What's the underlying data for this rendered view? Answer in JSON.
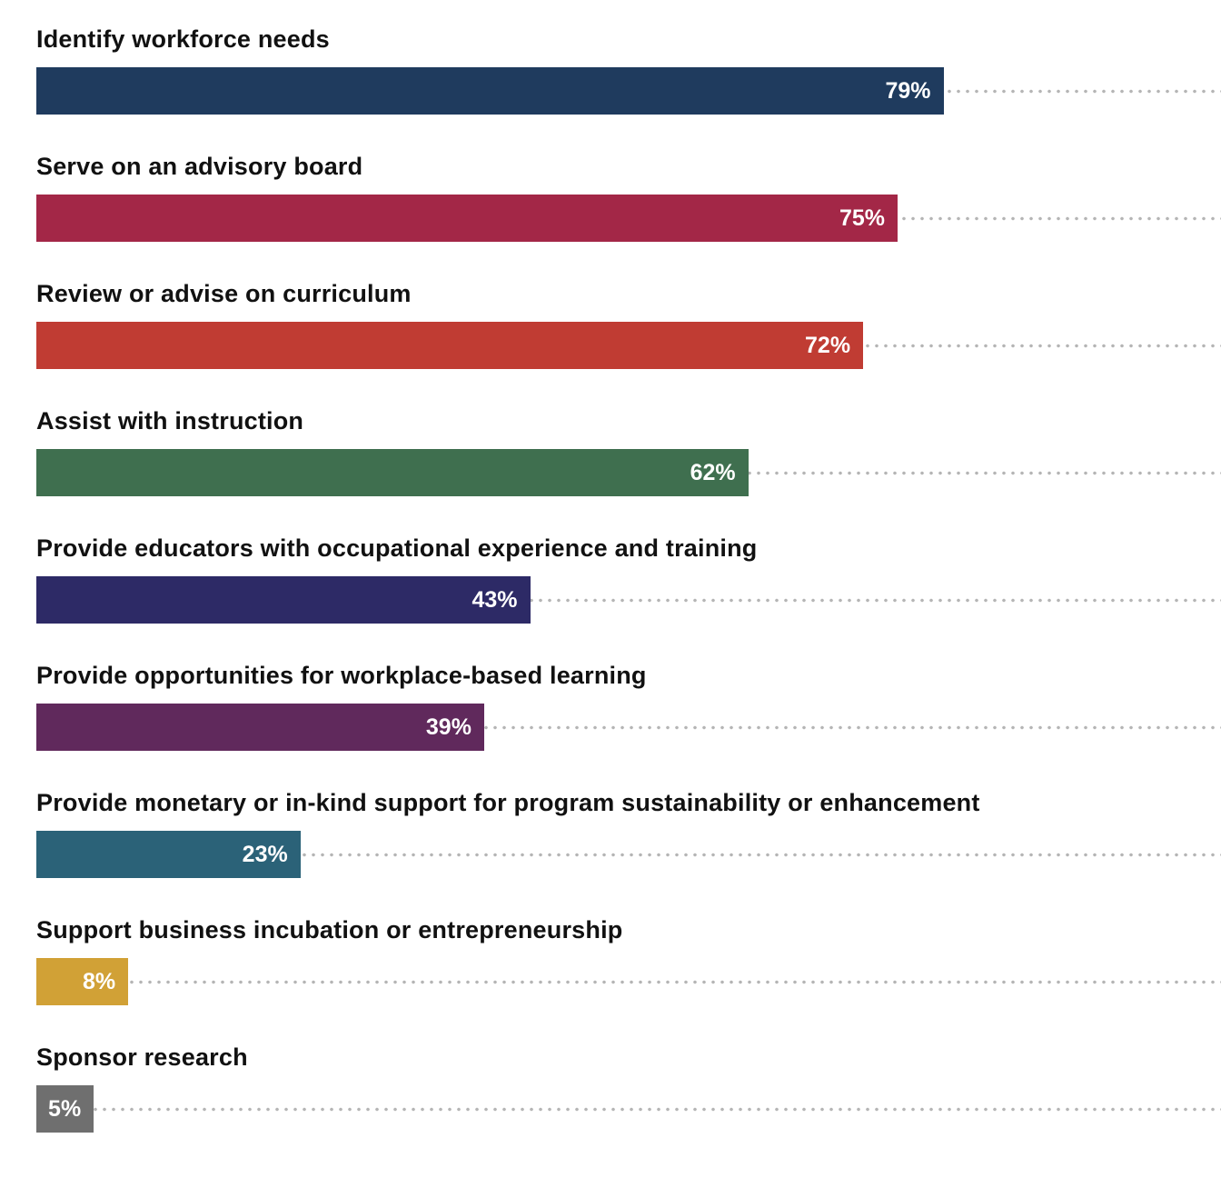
{
  "chart_data": {
    "type": "bar",
    "orientation": "horizontal",
    "title": "",
    "xlabel": "",
    "ylabel": "",
    "xlim": [
      0,
      100
    ],
    "grid": false,
    "legend": "none",
    "value_suffix": "%",
    "leader_dot_color": "#b5b5b5",
    "background_color": "#ffffff",
    "label_color": "#111111",
    "value_label_color": "#ffffff",
    "categories": [
      "Identify workforce needs",
      "Serve on an advisory board",
      "Review or advise on curriculum",
      "Assist with instruction",
      "Provide educators with occupational experience and training",
      "Provide opportunities for workplace-based learning",
      "Provide monetary or in-kind support for program sustainability or enhancement",
      "Support business incubation or entrepreneurship",
      "Sponsor research"
    ],
    "values": [
      79,
      75,
      72,
      62,
      43,
      39,
      23,
      8,
      5
    ],
    "value_labels": [
      "79%",
      "75%",
      "72%",
      "62%",
      "43%",
      "39%",
      "23%",
      "8%",
      "5%"
    ],
    "colors": [
      "#1f3b5e",
      "#a32747",
      "#c03c33",
      "#3f6f4f",
      "#2d2a66",
      "#60295c",
      "#2b6278",
      "#d1a136",
      "#6f6f6f"
    ]
  }
}
